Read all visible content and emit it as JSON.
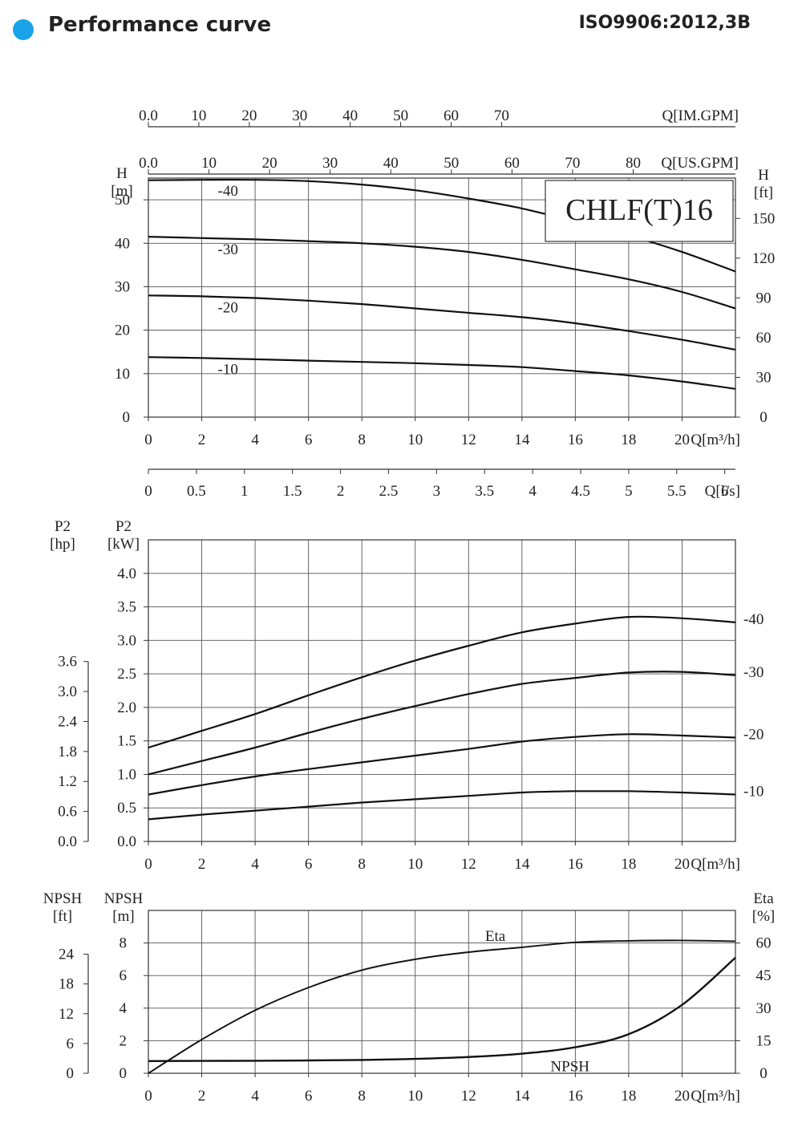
{
  "header": {
    "title": "Performance curve",
    "standard": "ISO9906:2012,3B",
    "dot_color": "#1aa3e8"
  },
  "chart_data": [
    {
      "type": "line",
      "name": "head",
      "model_label": "CHLF(T)16",
      "xlabel": "Q[m³/h]",
      "ylabel_left": [
        "H",
        "[m]"
      ],
      "ylabel_right": [
        "H",
        "[ft]"
      ],
      "xlim": [
        0,
        22
      ],
      "ylim": [
        0,
        55
      ],
      "x_ticks": [
        0,
        2,
        4,
        6,
        8,
        10,
        12,
        14,
        16,
        18,
        20
      ],
      "y_ticks": [
        0,
        10,
        20,
        30,
        40,
        50
      ],
      "y_ticks_right": [
        0,
        30,
        60,
        90,
        120,
        150
      ],
      "secondary_x_axes": [
        {
          "label": "Q[IM.GPM]",
          "ticks": [
            0,
            10,
            20,
            30,
            40,
            50,
            60,
            70
          ],
          "tick_labels": [
            "0.0",
            "10",
            "20",
            "30",
            "40",
            "50",
            "60",
            "70"
          ]
        },
        {
          "label": "Q[US.GPM]",
          "ticks": [
            0,
            10,
            20,
            30,
            40,
            50,
            60,
            70,
            80
          ],
          "tick_labels": [
            "0.0",
            "10",
            "20",
            "30",
            "40",
            "50",
            "60",
            "70",
            "80"
          ]
        }
      ],
      "series": [
        {
          "name": "-40",
          "x": [
            0,
            2,
            4,
            6,
            8,
            10,
            12,
            14,
            16,
            18,
            20,
            22
          ],
          "y": [
            54.5,
            54.6,
            54.6,
            54.3,
            53.5,
            52.2,
            50.3,
            48.0,
            45.0,
            41.8,
            38.0,
            33.5
          ]
        },
        {
          "name": "-30",
          "x": [
            0,
            2,
            4,
            6,
            8,
            10,
            12,
            14,
            16,
            18,
            20,
            22
          ],
          "y": [
            41.5,
            41.2,
            40.9,
            40.5,
            40.0,
            39.2,
            38.0,
            36.2,
            34.0,
            31.7,
            28.8,
            25.0
          ]
        },
        {
          "name": "-20",
          "x": [
            0,
            2,
            4,
            6,
            8,
            10,
            12,
            14,
            16,
            18,
            20,
            22
          ],
          "y": [
            28.0,
            27.8,
            27.4,
            26.8,
            26.0,
            25.0,
            24.0,
            23.0,
            21.6,
            19.8,
            17.8,
            15.5
          ]
        },
        {
          "name": "-10",
          "x": [
            0,
            2,
            4,
            6,
            8,
            10,
            12,
            14,
            16,
            18,
            20,
            22
          ],
          "y": [
            13.8,
            13.6,
            13.3,
            13.0,
            12.7,
            12.4,
            12.0,
            11.5,
            10.6,
            9.6,
            8.2,
            6.5
          ]
        }
      ]
    },
    {
      "type": "axis",
      "name": "flow-l-per-s",
      "xlabel": "Q[l/s]",
      "x_ticks": [
        0,
        0.5,
        1,
        1.5,
        2,
        2.5,
        3,
        3.5,
        4,
        4.5,
        5,
        5.5,
        6
      ],
      "tick_labels": [
        "0",
        "0.5",
        "1",
        "1.5",
        "2",
        "2.5",
        "3",
        "3.5",
        "4",
        "4.5",
        "5",
        "5.5",
        "6"
      ]
    },
    {
      "type": "line",
      "name": "power",
      "xlabel": "Q[m³/h]",
      "ylabel_left": [
        "P2",
        "[kW]"
      ],
      "ylabel_outer": [
        "P2",
        "[hp]"
      ],
      "xlim": [
        0,
        22
      ],
      "ylim": [
        0,
        4.5
      ],
      "x_ticks": [
        0,
        2,
        4,
        6,
        8,
        10,
        12,
        14,
        16,
        18,
        20
      ],
      "y_ticks": [
        0.0,
        0.5,
        1.0,
        1.5,
        2.0,
        2.5,
        3.0,
        3.5,
        4.0
      ],
      "y_tick_labels": [
        "0.0",
        "0.5",
        "1.0",
        "1.5",
        "2.0",
        "2.5",
        "3.0",
        "3.5",
        "4.0"
      ],
      "y_ticks_outer": [
        0.0,
        0.6,
        1.2,
        1.8,
        2.4,
        3.0,
        3.6
      ],
      "y_tick_labels_outer": [
        "0.0",
        "0.6",
        "1.2",
        "1.8",
        "2.4",
        "3.0",
        "3.6"
      ],
      "series": [
        {
          "name": "-40",
          "x": [
            0,
            2,
            4,
            6,
            8,
            10,
            12,
            14,
            16,
            18,
            20,
            22
          ],
          "y": [
            1.4,
            1.65,
            1.9,
            2.18,
            2.45,
            2.7,
            2.92,
            3.12,
            3.25,
            3.35,
            3.33,
            3.27
          ]
        },
        {
          "name": "-30",
          "x": [
            0,
            2,
            4,
            6,
            8,
            10,
            12,
            14,
            16,
            18,
            20,
            22
          ],
          "y": [
            1.0,
            1.2,
            1.4,
            1.62,
            1.83,
            2.02,
            2.2,
            2.35,
            2.44,
            2.52,
            2.53,
            2.48
          ]
        },
        {
          "name": "-20",
          "x": [
            0,
            2,
            4,
            6,
            8,
            10,
            12,
            14,
            16,
            18,
            20,
            22
          ],
          "y": [
            0.7,
            0.84,
            0.97,
            1.08,
            1.18,
            1.28,
            1.38,
            1.49,
            1.56,
            1.6,
            1.58,
            1.55
          ]
        },
        {
          "name": "-10",
          "x": [
            0,
            2,
            4,
            6,
            8,
            10,
            12,
            14,
            16,
            18,
            20,
            22
          ],
          "y": [
            0.33,
            0.4,
            0.46,
            0.52,
            0.58,
            0.63,
            0.68,
            0.73,
            0.75,
            0.75,
            0.73,
            0.7
          ]
        }
      ]
    },
    {
      "type": "line",
      "name": "npsh-efficiency",
      "xlabel": "Q[m³/h]",
      "ylabel_left": [
        "NPSH",
        "[m]"
      ],
      "ylabel_outer": [
        "NPSH",
        "[ft]"
      ],
      "ylabel_right": [
        "Eta",
        "[%]"
      ],
      "xlim": [
        0,
        22
      ],
      "ylim": [
        0,
        10
      ],
      "x_ticks": [
        0,
        2,
        4,
        6,
        8,
        10,
        12,
        14,
        16,
        18,
        20
      ],
      "y_ticks": [
        0,
        2,
        4,
        6,
        8
      ],
      "y_ticks_outer": [
        0,
        6,
        12,
        18,
        24
      ],
      "y_ticks_right": [
        0,
        15,
        30,
        45,
        60
      ],
      "series": [
        {
          "name": "Eta",
          "axis": "right",
          "x": [
            0,
            2,
            4,
            6,
            8,
            10,
            12,
            14,
            16,
            18,
            20,
            22
          ],
          "y": [
            0,
            15.5,
            29.0,
            39.5,
            47.5,
            52.5,
            55.8,
            58.0,
            60.3,
            61.0,
            61.2,
            60.8
          ]
        },
        {
          "name": "NPSH",
          "axis": "left",
          "x": [
            0,
            2,
            4,
            6,
            8,
            10,
            12,
            14,
            16,
            18,
            20,
            22
          ],
          "y": [
            0.75,
            0.76,
            0.77,
            0.79,
            0.82,
            0.88,
            1.0,
            1.2,
            1.6,
            2.4,
            4.2,
            7.1
          ]
        }
      ]
    }
  ]
}
